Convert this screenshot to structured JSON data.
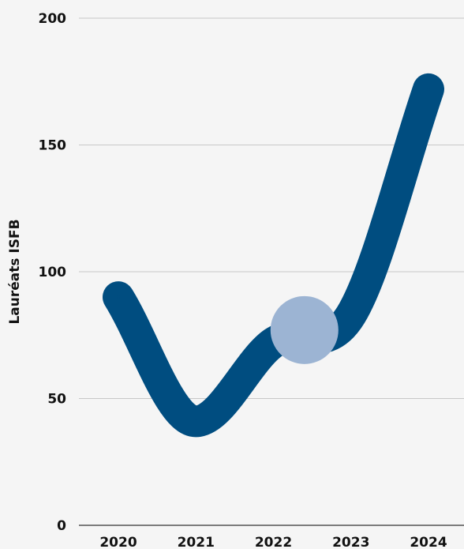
{
  "chart_data": {
    "type": "line",
    "title": "",
    "xlabel": "",
    "ylabel": "Lauréats ISFB",
    "categories": [
      "2020",
      "2021",
      "2022",
      "2023",
      "2024"
    ],
    "series": [
      {
        "values": [
          90,
          41,
          72,
          83,
          172
        ]
      }
    ],
    "highlight": {
      "x": 2022.4,
      "y": 77
    },
    "ylim": [
      0,
      200
    ],
    "yticks": [
      "0",
      "50",
      "100",
      "150",
      "200"
    ],
    "grid": true,
    "legend": "none",
    "colors": {
      "line": "#004d80",
      "highlight": "#9cb4d3",
      "grid": "#c8c8c8",
      "axis": "#555555",
      "background": "#f5f5f5"
    }
  }
}
